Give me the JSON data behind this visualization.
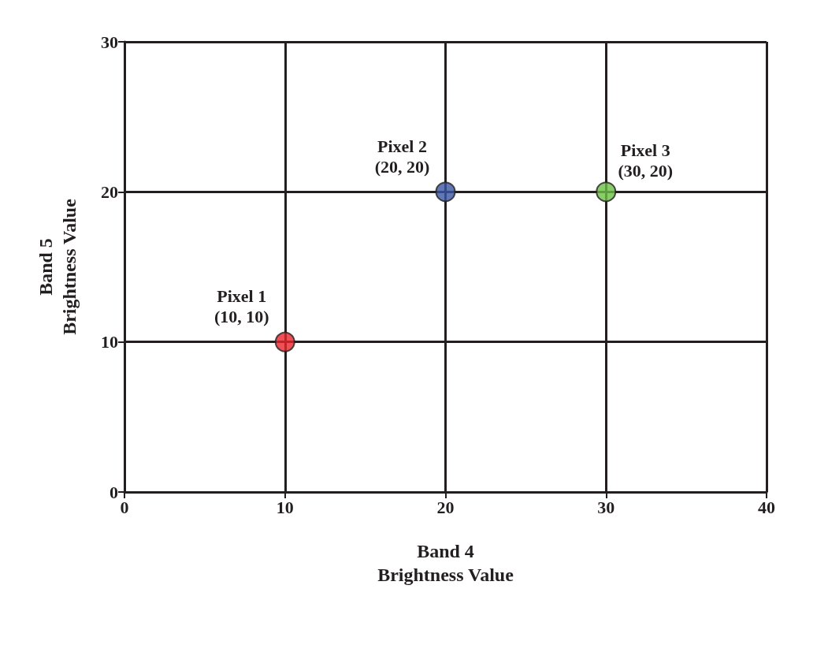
{
  "chart_data": {
    "type": "scatter",
    "xlabel": "Band 4\nBrightness Value",
    "ylabel": "Band 5\nBrightness Value",
    "x": [
      10,
      20,
      30
    ],
    "values": [
      10,
      20,
      20
    ],
    "colors": [
      "#e8262a",
      "#3a55a4",
      "#6bbf45"
    ],
    "xlim": [
      0,
      40
    ],
    "xticks": [
      0,
      10,
      20,
      30,
      40
    ],
    "ylim": [
      0,
      30
    ],
    "yticks": [
      0,
      10,
      20,
      30
    ],
    "grid": true,
    "marker": "circle",
    "annotations": [
      {
        "text": "Pixel 1\n(10, 10)",
        "x": 10,
        "y": 10
      },
      {
        "text": "Pixel 2\n(20, 20)",
        "x": 20,
        "y": 20
      },
      {
        "text": "Pixel 3\n(30, 20)",
        "x": 30,
        "y": 20
      }
    ]
  }
}
